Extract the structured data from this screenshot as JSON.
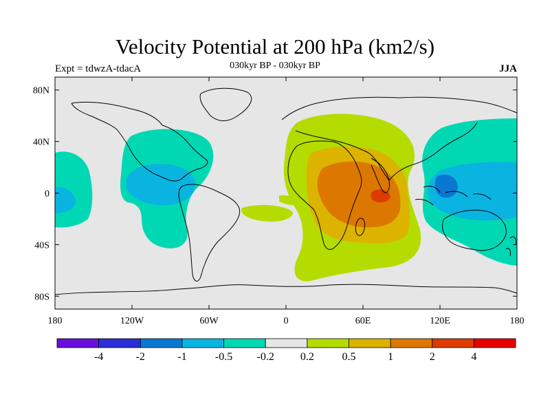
{
  "title": "Velocity Potential at 200 hPa (km2/s)",
  "subtitle_left": "Expt = tdwzA-tdacA",
  "subtitle_center": "030kyr BP - 030kyr BP",
  "subtitle_right": "JJA",
  "map": {
    "projection": "cylindrical-equidistant",
    "lon_range": [
      -180,
      180
    ],
    "lat_range": [
      -90,
      90
    ],
    "land_fill": "#e6e6e6",
    "coastline_color": "#000000",
    "lon_ticks": [
      {
        "value": -180,
        "label": "180"
      },
      {
        "value": -120,
        "label": "120W"
      },
      {
        "value": -60,
        "label": "60W"
      },
      {
        "value": 0,
        "label": "0"
      },
      {
        "value": 60,
        "label": "60E"
      },
      {
        "value": 120,
        "label": "120E"
      },
      {
        "value": 180,
        "label": "180"
      }
    ],
    "lat_ticks": [
      {
        "value": 80,
        "label": "80N"
      },
      {
        "value": 40,
        "label": "40N"
      },
      {
        "value": 0,
        "label": "0"
      },
      {
        "value": -40,
        "label": "40S"
      },
      {
        "value": -80,
        "label": "80S"
      }
    ]
  },
  "colorbar": {
    "levels": [
      "-4",
      "-2",
      "-1",
      "-0.5",
      "-0.2",
      "0.2",
      "0.5",
      "1",
      "2",
      "4"
    ],
    "colors": [
      "#6a0fdb",
      "#2a2fd6",
      "#0a78d2",
      "#0ab4e0",
      "#00d8b4",
      "#e6e6e6",
      "#b4dc00",
      "#dcb400",
      "#dc7800",
      "#dc3c00",
      "#e60000"
    ]
  }
}
